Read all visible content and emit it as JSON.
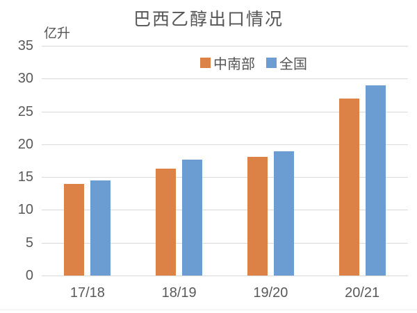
{
  "chart_data": {
    "type": "bar",
    "title": "巴西乙醇出口情况",
    "xlabel": "",
    "ylabel": "亿升",
    "categories": [
      "17/18",
      "18/19",
      "19/20",
      "20/21"
    ],
    "series": [
      {
        "name": "中南部",
        "color": "#DD8246",
        "values": [
          14.0,
          16.3,
          18.1,
          27.0
        ]
      },
      {
        "name": "全国",
        "color": "#6B9CD2",
        "values": [
          14.5,
          17.7,
          18.9,
          29.0
        ]
      }
    ],
    "ylim": [
      0,
      35
    ],
    "ytick_step": 5,
    "grid": true,
    "legend_position": "top",
    "text_color": "#595959",
    "gridline_color": "#d9d9d9"
  }
}
